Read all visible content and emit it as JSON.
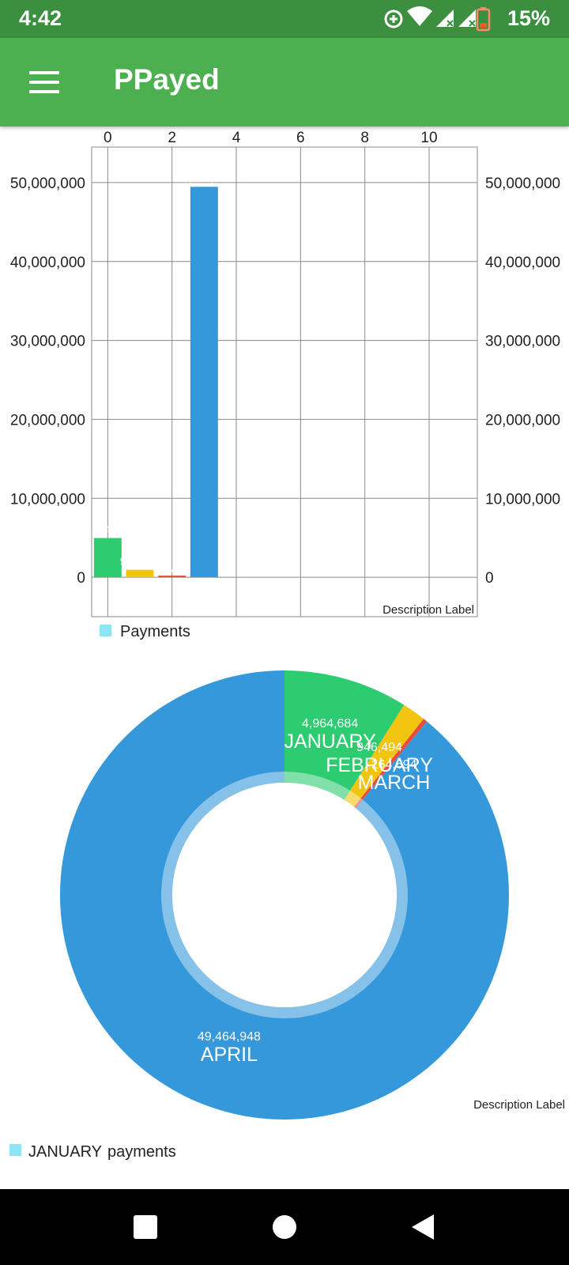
{
  "status_bar": {
    "time": "4:42",
    "battery": "15%",
    "icons": [
      "sync-icon",
      "wifi-icon",
      "signal-icon",
      "signal-icon",
      "battery-icon"
    ]
  },
  "app_bar": {
    "title": "PPayed",
    "menu_icon": "hamburger-menu-icon"
  },
  "colors": {
    "status_bar": "#3b8f3f",
    "app_bar": "#4caf50",
    "january": "#2ecc71",
    "february": "#f1c40f",
    "march": "#e74c3c",
    "april": "#3498db",
    "legend": "#8ee3f5"
  },
  "chart_data": [
    {
      "type": "bar",
      "x": [
        0,
        1,
        2,
        3
      ],
      "values": [
        4964684,
        946494,
        164694,
        49464948
      ],
      "value_labels": [
        "4,964,684",
        "946,494",
        "164,694",
        "49,464,948"
      ],
      "series_colors": [
        "#2ecc71",
        "#f1c40f",
        "#e74c3c",
        "#3498db"
      ],
      "x_axis": {
        "position": "top",
        "range": [
          -0.5,
          11.5
        ],
        "ticks": [
          "0",
          "2",
          "4",
          "6",
          "8",
          "10"
        ],
        "tick_values": [
          0,
          2,
          4,
          6,
          8,
          10
        ]
      },
      "y_axis": {
        "range": [
          -5000000,
          54500000
        ],
        "ticks": [
          "0",
          "10,000,000",
          "20,000,000",
          "30,000,000",
          "40,000,000",
          "50,000,000"
        ],
        "tick_values": [
          0,
          10000000,
          20000000,
          30000000,
          40000000,
          50000000
        ],
        "left_and_right": true
      },
      "grid": true,
      "description": "Description Label",
      "legend": {
        "label": "Payments",
        "placement": "bottom-left"
      }
    },
    {
      "type": "pie",
      "donut": true,
      "slices": [
        {
          "label": "JANUARY",
          "value": 4964684,
          "value_label": "4,964,684",
          "color": "#2ecc71"
        },
        {
          "label": "FEBRUARY",
          "value": 946494,
          "value_label": "946,494",
          "color": "#f1c40f"
        },
        {
          "label": "MARCH",
          "value": 164694,
          "value_label": "164,694",
          "color": "#e74c3c"
        },
        {
          "label": "APRIL",
          "value": 49464948,
          "value_label": "49,464,948",
          "color": "#3498db"
        }
      ],
      "description": "Description Label",
      "legend": {
        "entries": [
          "JANUARY",
          "payments"
        ],
        "placement": "bottom-left"
      }
    }
  ],
  "nav_bar": {
    "icons": [
      "recents-square-icon",
      "home-circle-icon",
      "back-triangle-icon"
    ]
  }
}
